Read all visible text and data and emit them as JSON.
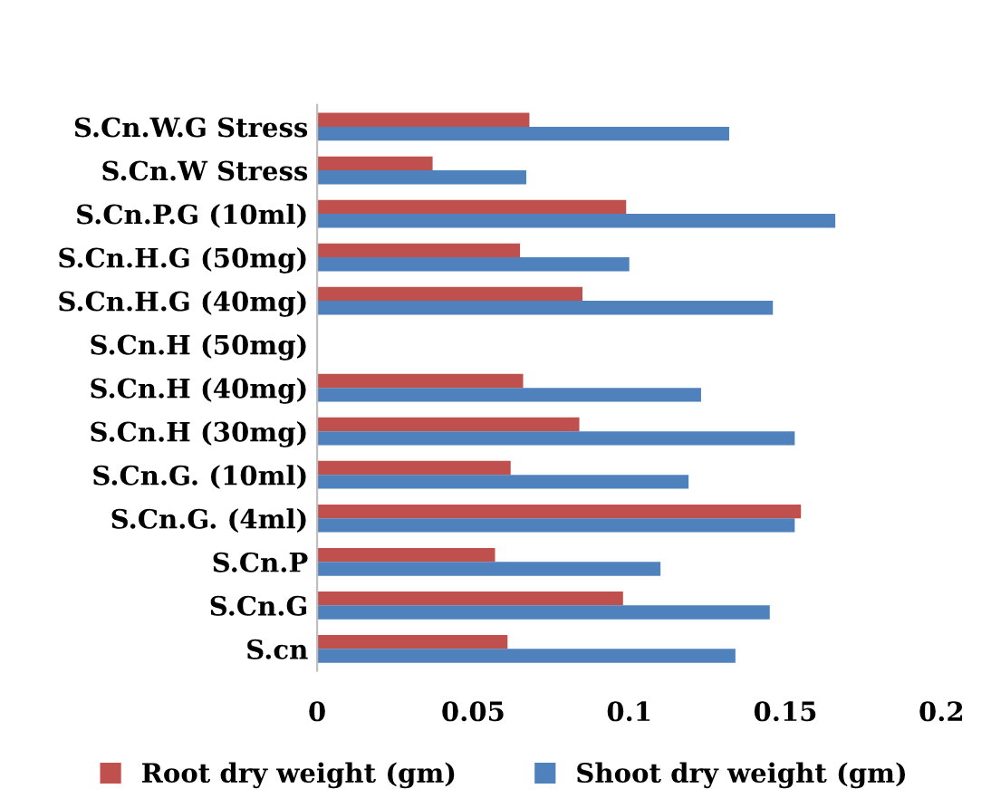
{
  "chart_data": {
    "type": "bar",
    "orientation": "horizontal",
    "categories": [
      "S.Cn.W.G Stress",
      "S.Cn.W Stress",
      "S.Cn.P.G (10ml)",
      "S.Cn.H.G (50mg)",
      "S.Cn.H.G (40mg)",
      "S.Cn.H (50mg)",
      "S.Cn.H (40mg)",
      "S.Cn.H (30mg)",
      "S.Cn.G. (10ml)",
      "S.Cn.G. (4ml)",
      "S.Cn.P",
      "S.Cn.G",
      "S.cn"
    ],
    "series": [
      {
        "name": "Root dry weight (gm)",
        "color": "#c0504d",
        "values": [
          0.068,
          0.037,
          0.099,
          0.065,
          0.085,
          null,
          0.066,
          0.084,
          0.062,
          0.155,
          0.057,
          0.098,
          0.061
        ]
      },
      {
        "name": "Shoot dry weight (gm)",
        "color": "#4f81bd",
        "values": [
          0.132,
          0.067,
          0.166,
          0.1,
          0.146,
          null,
          0.123,
          0.153,
          0.119,
          0.153,
          0.11,
          0.145,
          0.134
        ]
      }
    ],
    "xlim": [
      0,
      0.2
    ],
    "xticks": [
      0,
      0.05,
      0.1,
      0.15,
      0.2
    ],
    "grid": false,
    "legend": "bottom"
  }
}
